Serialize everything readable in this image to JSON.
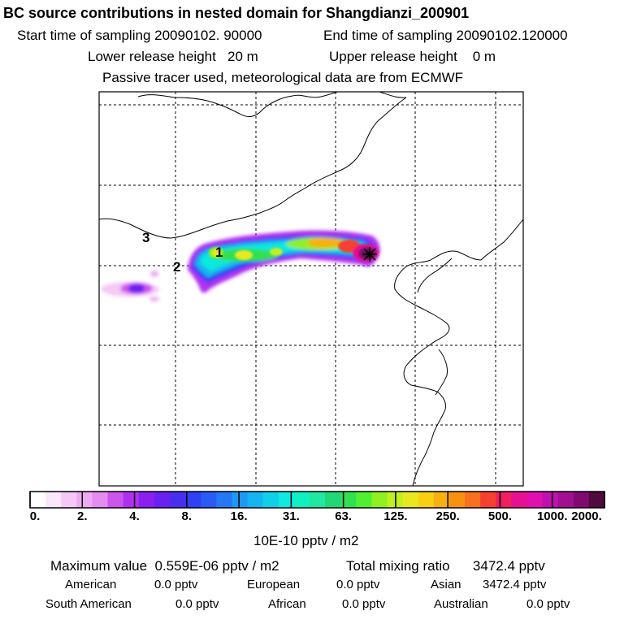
{
  "header": {
    "title": "BC  source contributions in nested domain for Shangdianzi_200901",
    "start_label": "Start time of sampling",
    "start_value": "20090102. 90000",
    "end_label": "End time of sampling",
    "end_value": "20090102.120000",
    "lower_label": "Lower release height",
    "lower_value": "20 m",
    "upper_label": "Upper release height",
    "upper_value": "0 m",
    "tracer_note": "Passive tracer used, meteorological data are from ECMWF"
  },
  "map": {
    "trajectory_markers": [
      "1",
      "2",
      "3"
    ],
    "receptor_symbol": "star-icon"
  },
  "colorbar": {
    "tick_labels": [
      "0.",
      "2.",
      "4.",
      "8.",
      "16.",
      "31.",
      "63.",
      "125.",
      "250.",
      "500.",
      "1000.",
      "2000."
    ],
    "units": "10E-10 pptv / m2",
    "colors": [
      "#ffffff",
      "#fbe6fb",
      "#f5c8f5",
      "#eeaaf0",
      "#e58cf0",
      "#cc55ee",
      "#b030f0",
      "#8a1ff0",
      "#6a20f0",
      "#4a2ef0",
      "#3040f5",
      "#2a5cf5",
      "#2478f5",
      "#1f98f5",
      "#14b5f0",
      "#10d0e8",
      "#10e8e0",
      "#10f0c0",
      "#20e8a0",
      "#20d878",
      "#30e050",
      "#50f030",
      "#90f020",
      "#c0f020",
      "#e8e820",
      "#f8d010",
      "#f8b010",
      "#f89010",
      "#f87020",
      "#f84030",
      "#f02060",
      "#e81090",
      "#e010b0",
      "#c010b0",
      "#a01090",
      "#800a70",
      "#500a40"
    ]
  },
  "summary": {
    "max_label": "Maximum value",
    "max_value": "0.559E-06 pptv / m2",
    "total_label": "Total mixing ratio",
    "total_value": "3472.4 pptv",
    "regions": [
      {
        "name": "American",
        "value": "0.0 pptv"
      },
      {
        "name": "European",
        "value": "0.0 pptv"
      },
      {
        "name": "Asian",
        "value": "3472.4 pptv"
      },
      {
        "name": "South American",
        "value": "0.0 pptv"
      },
      {
        "name": "African",
        "value": "0.0 pptv"
      },
      {
        "name": "Australian",
        "value": "0.0 pptv"
      }
    ]
  }
}
